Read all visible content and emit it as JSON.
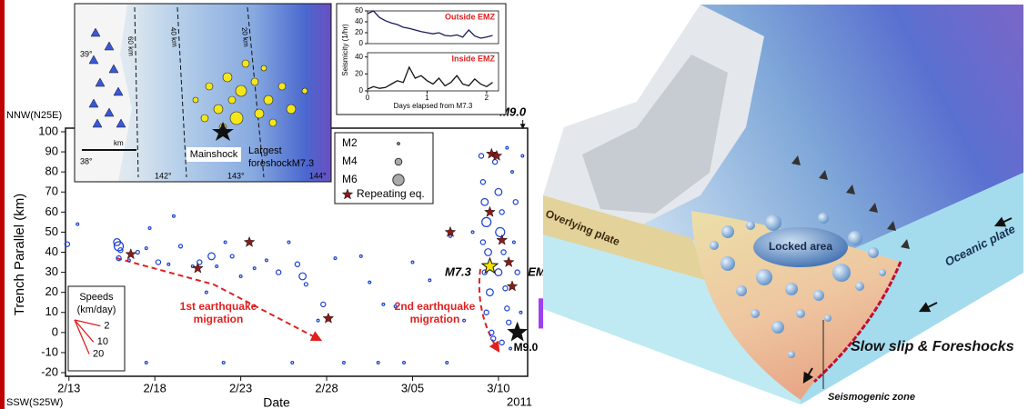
{
  "chart_data": [
    {
      "type": "scatter",
      "y_label": "Trench Parallel (km)",
      "x_label": "Date",
      "x_note": "2011",
      "y_top_label": "NNW(N25E)",
      "y_bottom_label": "SSW(S25W)",
      "xlim": [
        43.8,
        70.7
      ],
      "xticks": [
        {
          "value": 44,
          "label": "2/13"
        },
        {
          "value": 49,
          "label": "2/18"
        },
        {
          "value": 54,
          "label": "2/23"
        },
        {
          "value": 59,
          "label": "2/28"
        },
        {
          "value": 64,
          "label": "3/05"
        },
        {
          "value": 69,
          "label": "3/10"
        }
      ],
      "ylim": [
        -20,
        100
      ],
      "yticks": [
        -20,
        -10,
        0,
        10,
        20,
        30,
        40,
        50,
        60,
        70,
        80,
        90,
        100
      ],
      "points": {
        "color": "#1a3fd0",
        "x": [
          43.9,
          44.5,
          45.2,
          46.8,
          46.9,
          47.0,
          46.9,
          47.5,
          48.0,
          48.5,
          48.7,
          49.2,
          49.8,
          50.1,
          50.5,
          51.2,
          51.6,
          52.0,
          52.3,
          52.6,
          53.1,
          53.5,
          54.0,
          54.8,
          55.5,
          56.2,
          56.8,
          57.3,
          57.6,
          57.8,
          58.5,
          58.8,
          59.1,
          59.5,
          61.0,
          61.5,
          62.3,
          63.0,
          64.0,
          65.0,
          66.2,
          67.0,
          67.5,
          68.0,
          68.2,
          68.3,
          68.1,
          68.4,
          68.2,
          68.5,
          68.3,
          68.6,
          68.1,
          68.8,
          69.0,
          69.2,
          69.1,
          69.3,
          69.0,
          69.4,
          69.5,
          69.6,
          69.2,
          69.8,
          70.0,
          69.9,
          70.1,
          69.7,
          70.3,
          69.5,
          68.7,
          70.4,
          48.5,
          53.0,
          57.0,
          60.0,
          62.0,
          63.5,
          66.0
        ],
        "values": [
          44,
          54,
          -2,
          45,
          43,
          41,
          37,
          36,
          40,
          42,
          52,
          35,
          34,
          58,
          43,
          33,
          35,
          20,
          38,
          33,
          45,
          38,
          28,
          32,
          36,
          30,
          45,
          34,
          28,
          24,
          6,
          14,
          7,
          37,
          38,
          25,
          14,
          13,
          35,
          26,
          48,
          6,
          50,
          88,
          65,
          55,
          45,
          40,
          30,
          20,
          10,
          0,
          75,
          85,
          70,
          60,
          50,
          40,
          30,
          22,
          12,
          5,
          -5,
          80,
          65,
          45,
          30,
          -8,
          10,
          92,
          -3,
          88,
          -15,
          -15,
          -15,
          -15,
          -15,
          -15,
          -15
        ],
        "magnitudes": [
          3,
          2,
          2,
          4,
          5,
          3,
          3,
          2,
          2.5,
          2,
          2,
          3,
          2,
          2,
          2.5,
          2,
          3,
          2,
          4,
          2,
          2,
          2.5,
          2,
          2,
          2,
          3,
          2,
          3,
          4,
          2.5,
          2,
          3,
          3,
          2,
          2,
          2,
          2,
          2,
          2,
          2,
          2,
          2,
          2,
          3,
          4,
          5,
          3,
          4,
          3,
          4,
          3,
          3,
          3,
          3,
          4,
          3,
          5,
          3,
          4,
          3,
          3,
          3,
          3,
          2,
          3,
          2,
          3,
          2,
          2,
          2,
          3,
          2,
          2,
          2,
          2,
          2,
          2,
          2,
          2
        ]
      },
      "size_legend": [
        {
          "value": 2,
          "label": "M2"
        },
        {
          "value": 4,
          "label": "M4"
        },
        {
          "value": 6,
          "label": "M6"
        }
      ],
      "repeating": {
        "name": "Repeating eq.",
        "color": "#8b1a1a",
        "x": [
          47.6,
          51.5,
          54.5,
          59.1,
          66.2,
          68.6,
          68.9,
          68.5,
          69.2,
          69.6,
          69.8
        ],
        "values": [
          39,
          32,
          45,
          7,
          50,
          89,
          88,
          60,
          46,
          35,
          23
        ]
      },
      "foreshock": {
        "label": "M7.3",
        "x": 68.5,
        "y": 33,
        "color": "#f2e600"
      },
      "mainshock": {
        "label": "M9.0",
        "top_label": "M9.0",
        "x": 70.1,
        "y": 0,
        "color": "#111111"
      },
      "emz": {
        "label": "EMZ",
        "range": [
          2,
          17
        ],
        "color": "#a040f0"
      },
      "migration_labels": [
        [
          "1st earthquake",
          "migration"
        ],
        [
          "2nd earthquake",
          "migration"
        ]
      ],
      "speeds": {
        "title": "Speeds",
        "unit": "(km/day)",
        "values": [
          2,
          10,
          20
        ]
      }
    },
    {
      "type": "line",
      "title": "Outside EMZ",
      "y_label": "Seismicity (1/hr)",
      "color": "#1a1a5e",
      "x": [
        0,
        0.1,
        0.2,
        0.3,
        0.4,
        0.5,
        0.6,
        0.7,
        0.8,
        0.9,
        1.0,
        1.1,
        1.2,
        1.3,
        1.4,
        1.5,
        1.6,
        1.7,
        1.8,
        1.9,
        2.0,
        2.1
      ],
      "values": [
        55,
        60,
        48,
        42,
        38,
        35,
        30,
        28,
        25,
        22,
        20,
        18,
        20,
        15,
        14,
        16,
        12,
        25,
        14,
        10,
        12,
        15
      ],
      "xlim": [
        0,
        2.2
      ],
      "ylim": [
        0,
        60
      ],
      "yticks": [
        0,
        20,
        40,
        60
      ]
    },
    {
      "type": "line",
      "title": "Inside EMZ",
      "x_label": "Days elapsed from M7.3",
      "color": "#111111",
      "x": [
        0,
        0.1,
        0.2,
        0.3,
        0.4,
        0.5,
        0.6,
        0.7,
        0.8,
        0.9,
        1.0,
        1.1,
        1.2,
        1.3,
        1.4,
        1.5,
        1.6,
        1.7,
        1.8,
        1.9,
        2.0,
        2.1
      ],
      "values": [
        2,
        5,
        3,
        4,
        8,
        12,
        10,
        28,
        15,
        18,
        12,
        8,
        15,
        6,
        10,
        18,
        8,
        6,
        14,
        8,
        5,
        10
      ],
      "xlim": [
        0,
        2.2
      ],
      "xticks": [
        0,
        1,
        2
      ],
      "ylim": [
        0,
        45
      ],
      "yticks": [
        0,
        20,
        40
      ]
    }
  ],
  "map": {
    "lat_labels": [
      "39°",
      "38°"
    ],
    "lon_labels": [
      "142°",
      "143°",
      "144°"
    ],
    "depth_labels": [
      "60 km",
      "40 km",
      "20 km"
    ],
    "scale_label": "km",
    "mainshock_label": "Mainshock",
    "foreshock_label": [
      "Largest",
      "foreshockM7.3"
    ]
  },
  "diagram": {
    "overlying": "Overlying plate",
    "locked": "Locked area",
    "oceanic": "Oceanic plate",
    "slow_slip": "Slow slip & Foreshocks",
    "seismogenic": "Seismogenic zone"
  }
}
